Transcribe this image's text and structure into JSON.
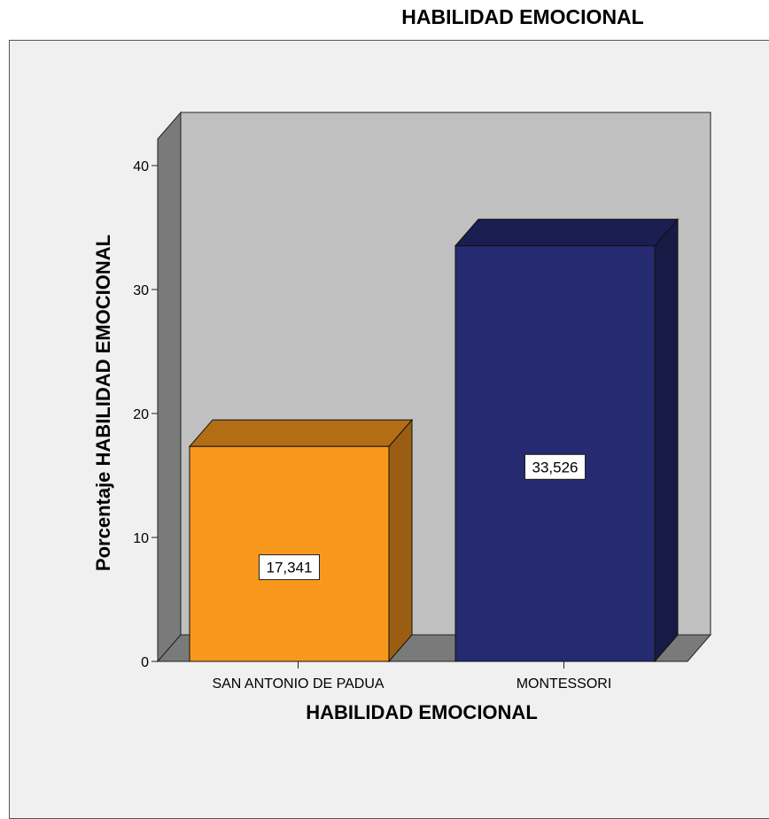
{
  "chart_data": {
    "type": "bar",
    "title": "HABILIDAD EMOCIONAL",
    "xlabel": "HABILIDAD EMOCIONAL",
    "ylabel": "Porcentaje HABILIDAD EMOCIONAL",
    "categories": [
      "SAN ANTONIO DE PADUA",
      "MONTESSORI"
    ],
    "values": [
      17.341,
      33.526
    ],
    "value_labels": [
      "17,341",
      "33,526"
    ],
    "colors": [
      "#f7981d",
      "#262a70"
    ],
    "ylim": [
      0,
      40
    ],
    "yticks": [
      0,
      10,
      20,
      30,
      40
    ],
    "style": "3d",
    "grid": false
  }
}
